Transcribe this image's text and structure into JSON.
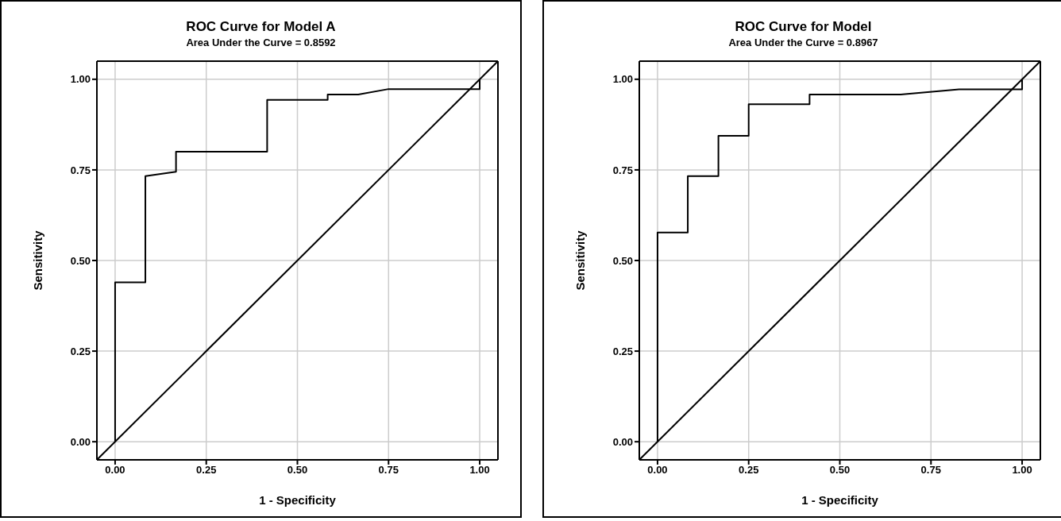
{
  "chart_data": [
    {
      "type": "line",
      "title": "ROC Curve for Model A",
      "subtitle": "Area Under the Curve = 0.8592",
      "xlabel": "1 - Specificity",
      "ylabel": "Sensitivity",
      "xlim": [
        -0.05,
        1.05
      ],
      "ylim": [
        -0.05,
        1.05
      ],
      "xticks": [
        {
          "value": 0,
          "label": "0.00"
        },
        {
          "value": 0.25,
          "label": "0.25"
        },
        {
          "value": 0.5,
          "label": "0.50"
        },
        {
          "value": 0.75,
          "label": "0.75"
        },
        {
          "value": 1,
          "label": "1.00"
        }
      ],
      "yticks": [
        {
          "value": 0,
          "label": "0.00"
        },
        {
          "value": 0.25,
          "label": "0.25"
        },
        {
          "value": 0.5,
          "label": "0.50"
        },
        {
          "value": 0.75,
          "label": "0.75"
        },
        {
          "value": 1,
          "label": "1.00"
        }
      ],
      "grid": true,
      "marker": "none",
      "series": [
        {
          "color": "#000000",
          "x": [
            0,
            0,
            0.083,
            0.083,
            0.167,
            0.167,
            0.417,
            0.417,
            0.583,
            0.583,
            0.667,
            0.75,
            1,
            1
          ],
          "values": [
            0,
            0.44,
            0.44,
            0.733,
            0.745,
            0.8,
            0.8,
            0.943,
            0.943,
            0.958,
            0.958,
            0.973,
            0.973,
            1
          ]
        },
        {
          "color": "#000000",
          "x": [
            -0.05,
            1.05
          ],
          "values": [
            -0.05,
            1.05
          ]
        }
      ]
    },
    {
      "type": "line",
      "title": "ROC Curve for Model",
      "subtitle": "Area Under the Curve = 0.8967",
      "xlabel": "1 - Specificity",
      "ylabel": "Sensitivity",
      "xlim": [
        -0.05,
        1.05
      ],
      "ylim": [
        -0.05,
        1.05
      ],
      "xticks": [
        {
          "value": 0,
          "label": "0.00"
        },
        {
          "value": 0.25,
          "label": "0.25"
        },
        {
          "value": 0.5,
          "label": "0.50"
        },
        {
          "value": 0.75,
          "label": "0.75"
        },
        {
          "value": 1,
          "label": "1.00"
        }
      ],
      "yticks": [
        {
          "value": 0,
          "label": "0.00"
        },
        {
          "value": 0.25,
          "label": "0.25"
        },
        {
          "value": 0.5,
          "label": "0.50"
        },
        {
          "value": 0.75,
          "label": "0.75"
        },
        {
          "value": 1,
          "label": "1.00"
        }
      ],
      "grid": true,
      "marker": "none",
      "series": [
        {
          "color": "#000000",
          "x": [
            0,
            0,
            0.083,
            0.083,
            0.167,
            0.167,
            0.25,
            0.25,
            0.417,
            0.417,
            0.667,
            0.827,
            1,
            1
          ],
          "values": [
            0,
            0.577,
            0.577,
            0.733,
            0.733,
            0.844,
            0.844,
            0.931,
            0.931,
            0.958,
            0.958,
            0.972,
            0.972,
            1
          ]
        },
        {
          "color": "#000000",
          "x": [
            -0.05,
            1.05
          ],
          "values": [
            -0.05,
            1.05
          ]
        }
      ]
    }
  ]
}
